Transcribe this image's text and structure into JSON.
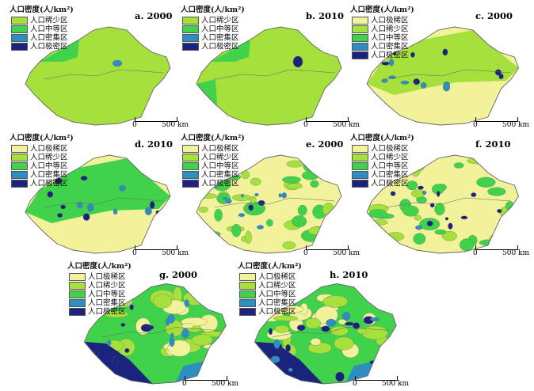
{
  "colors": {
    "very_sparse": "#f2f29a",
    "sparse": "#a5e03c",
    "medium": "#3fd24a",
    "dense": "#2d8fc0",
    "very_dense": "#1a237e",
    "border": "#666666"
  },
  "legend_title": "人口密度(人/km²)",
  "classes": {
    "very_sparse": "人口极稀区",
    "sparse": "人口稀少区",
    "medium": "人口中等区",
    "dense": "人口密集区",
    "very_dense": "人口极密区"
  },
  "scale": {
    "zero": "0",
    "distance": "500 km"
  },
  "panels": [
    {
      "id": "a",
      "label": "a. 2000",
      "legend": [
        "sparse",
        "medium",
        "dense",
        "very_dense"
      ]
    },
    {
      "id": "b",
      "label": "b. 2010",
      "legend": [
        "sparse",
        "medium",
        "dense",
        "very_dense"
      ]
    },
    {
      "id": "c",
      "label": "c. 2000",
      "legend": [
        "very_sparse",
        "sparse",
        "medium",
        "dense",
        "very_dense"
      ]
    },
    {
      "id": "d",
      "label": "d. 2010",
      "legend": [
        "very_sparse",
        "sparse",
        "medium",
        "dense",
        "very_dense"
      ]
    },
    {
      "id": "e",
      "label": "e. 2000",
      "legend": [
        "very_sparse",
        "sparse",
        "medium",
        "dense",
        "very_dense"
      ]
    },
    {
      "id": "f",
      "label": "f. 2010",
      "legend": [
        "very_sparse",
        "sparse",
        "medium",
        "dense",
        "very_dense"
      ]
    },
    {
      "id": "g",
      "label": "g. 2000",
      "legend": [
        "very_sparse",
        "sparse",
        "medium",
        "dense",
        "very_dense"
      ]
    },
    {
      "id": "h",
      "label": "h. 2010",
      "legend": [
        "very_sparse",
        "sparse",
        "medium",
        "dense",
        "very_dense"
      ]
    }
  ]
}
